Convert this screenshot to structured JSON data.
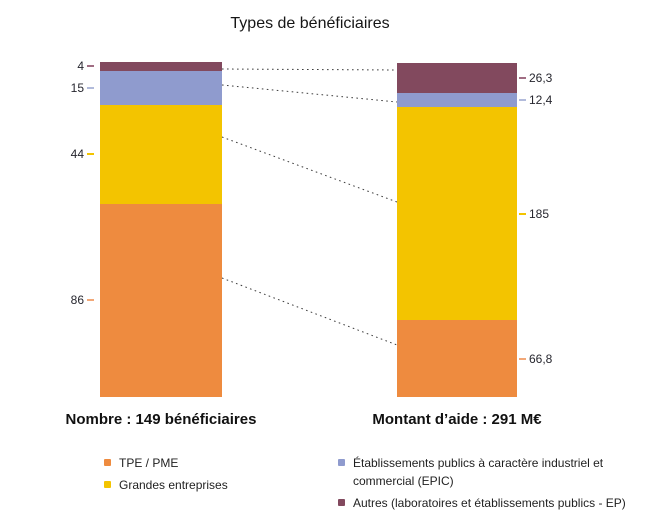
{
  "title": "Types de bénéficiaires",
  "chart_data": {
    "type": "bar",
    "stacked": true,
    "title": "Types de bénéficiaires",
    "categories": [
      "Nombre",
      "Montant d’aide"
    ],
    "legend_position": "bottom",
    "grid": false,
    "colors": {
      "tpe_pme": "#ee8b3f",
      "grandes_entreprises": "#f3c400",
      "epic": "#8f9bce",
      "autres": "#82495e"
    },
    "tick_colors": {
      "tpe_pme": "#f2a878",
      "grandes_entreprises": "#f3c400",
      "epic": "#b2bbdb",
      "autres": "#a06d83"
    },
    "bars": [
      {
        "label": "Nombre : 149 bénéficiaires",
        "total": 149,
        "unit": "bénéficiaires",
        "segments_top_to_bottom": [
          {
            "series": "Autres (laboratoires et établissements publics - EP)",
            "value": 4,
            "tick": "4",
            "color_key": "autres"
          },
          {
            "series": "Établissements publics à caractère industriel et commercial (EPIC)",
            "value": 15,
            "tick": "15",
            "color_key": "epic"
          },
          {
            "series": "Grandes entreprises",
            "value": 44,
            "tick": "44",
            "color_key": "grandes_entreprises"
          },
          {
            "series": "TPE / PME",
            "value": 86,
            "tick": "86",
            "color_key": "tpe_pme"
          }
        ]
      },
      {
        "label": "Montant d’aide : 291 M€",
        "total": 291,
        "unit": "M€",
        "segments_top_to_bottom": [
          {
            "series": "Autres (laboratoires et établissements publics - EP)",
            "value": 26.3,
            "tick": "26,3",
            "color_key": "autres"
          },
          {
            "series": "Établissements publics à caractère industriel et commercial (EPIC)",
            "value": 12.4,
            "tick": "12,4",
            "color_key": "epic"
          },
          {
            "series": "Grandes entreprises",
            "value": 185,
            "tick": "185",
            "color_key": "grandes_entreprises"
          },
          {
            "series": "TPE / PME",
            "value": 66.8,
            "tick": "66,8",
            "color_key": "tpe_pme"
          }
        ]
      }
    ]
  },
  "legend": {
    "left": [
      {
        "label": "TPE / PME",
        "color_key": "tpe_pme"
      },
      {
        "label": "Grandes entreprises",
        "color_key": "grandes_entreprises"
      }
    ],
    "right": [
      {
        "label": "Établissements publics à caractère industriel et commercial (EPIC)",
        "color_key": "epic"
      },
      {
        "label": "Autres (laboratoires et établissements publics - EP)",
        "color_key": "autres"
      }
    ]
  }
}
